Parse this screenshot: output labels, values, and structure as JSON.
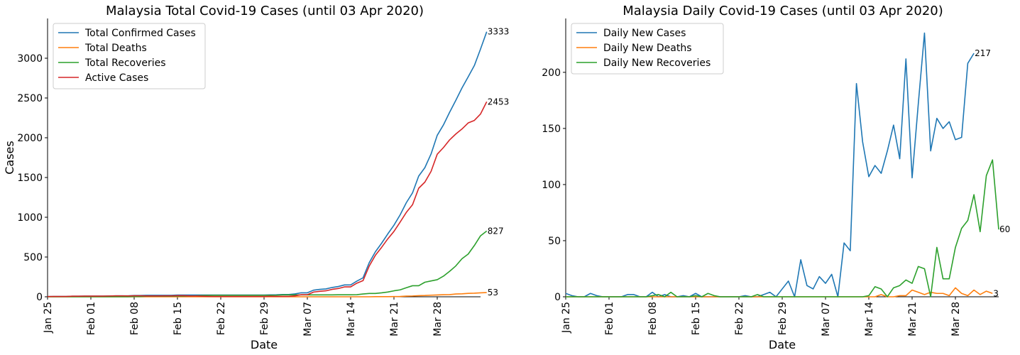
{
  "chart_data": [
    {
      "type": "line",
      "title": "Malaysia Total Covid-19 Cases (until 03 Apr 2020)",
      "xlabel": "Date",
      "ylabel": "Cases",
      "x_start": "2020-01-25",
      "x_ticks": [
        "Jan 25",
        "Feb 01",
        "Feb 08",
        "Feb 15",
        "Feb 22",
        "Feb 29",
        "Mar 07",
        "Mar 14",
        "Mar 21",
        "Mar 28"
      ],
      "y_ticks": [
        "0",
        "500",
        "1000",
        "1500",
        "2000",
        "2500",
        "3000"
      ],
      "ylim": [
        0,
        3500
      ],
      "legend": "top-left",
      "series": [
        {
          "name": "Total Confirmed Cases",
          "color": "#1f77b4",
          "end_label": "3333",
          "values": [
            3,
            4,
            4,
            4,
            7,
            7,
            8,
            8,
            8,
            8,
            10,
            12,
            12,
            12,
            16,
            16,
            18,
            18,
            18,
            19,
            19,
            22,
            22,
            22,
            22,
            22,
            22,
            22,
            22,
            22,
            22,
            22,
            22,
            22,
            22,
            22,
            24,
            25,
            29,
            29,
            36,
            50,
            50,
            83,
            93,
            99,
            117,
            129,
            149,
            149,
            197,
            238,
            428,
            566,
            673,
            790,
            900,
            1030,
            1183,
            1306,
            1518,
            1624,
            1796,
            2031,
            2161,
            2320,
            2470,
            2626,
            2766,
            2908,
            3116,
            3333
          ]
        },
        {
          "name": "Total Deaths",
          "color": "#ff7f0e",
          "end_label": "53",
          "values": [
            0,
            0,
            0,
            0,
            0,
            0,
            0,
            0,
            0,
            0,
            0,
            0,
            0,
            0,
            0,
            0,
            0,
            0,
            0,
            0,
            0,
            0,
            0,
            0,
            0,
            0,
            0,
            0,
            0,
            0,
            0,
            0,
            0,
            0,
            0,
            0,
            0,
            0,
            0,
            0,
            0,
            0,
            0,
            0,
            0,
            0,
            0,
            0,
            0,
            0,
            0,
            0,
            0,
            2,
            2,
            2,
            3,
            4,
            8,
            10,
            14,
            16,
            20,
            23,
            26,
            27,
            35,
            37,
            43,
            45,
            50,
            53
          ]
        },
        {
          "name": "Total Recoveries",
          "color": "#2ca02c",
          "end_label": "827",
          "values": [
            0,
            0,
            0,
            0,
            0,
            0,
            0,
            0,
            0,
            0,
            0,
            0,
            0,
            1,
            3,
            3,
            7,
            7,
            7,
            7,
            7,
            8,
            8,
            11,
            12,
            15,
            17,
            18,
            18,
            18,
            18,
            18,
            18,
            18,
            18,
            18,
            18,
            20,
            24,
            24,
            24,
            24,
            24,
            24,
            24,
            24,
            24,
            25,
            25,
            25,
            26,
            35,
            42,
            42,
            50,
            60,
            75,
            87,
            114,
            139,
            139,
            183,
            199,
            215,
            259,
            320,
            388,
            479,
            537,
            645,
            767,
            827
          ]
        },
        {
          "name": "Active Cases",
          "color": "#d62728",
          "end_label": "2453",
          "values": [
            3,
            4,
            4,
            4,
            7,
            7,
            8,
            8,
            8,
            8,
            10,
            12,
            12,
            11,
            13,
            13,
            11,
            11,
            11,
            12,
            12,
            14,
            14,
            11,
            10,
            7,
            5,
            4,
            4,
            4,
            4,
            4,
            4,
            4,
            4,
            4,
            6,
            5,
            5,
            5,
            12,
            26,
            26,
            59,
            69,
            75,
            93,
            104,
            124,
            124,
            171,
            203,
            386,
            522,
            621,
            728,
            822,
            939,
            1061,
            1157,
            1365,
            1442,
            1577,
            1793,
            1876,
            1973,
            2047,
            2110,
            2186,
            2218,
            2299,
            2453
          ]
        }
      ]
    },
    {
      "type": "line",
      "title": "Malaysia Daily Covid-19 Cases (until 03 Apr 2020)",
      "xlabel": "Date",
      "ylabel": "",
      "x_start": "2020-01-25",
      "x_ticks": [
        "Jan 25",
        "Feb 01",
        "Feb 08",
        "Feb 15",
        "Feb 22",
        "Feb 29",
        "Mar 07",
        "Mar 14",
        "Mar 21",
        "Mar 28"
      ],
      "y_ticks": [
        "0",
        "50",
        "100",
        "150",
        "200"
      ],
      "ylim": [
        0,
        248
      ],
      "legend": "top-left",
      "series": [
        {
          "name": "Daily New Cases",
          "color": "#1f77b4",
          "end_label": "217",
          "values": [
            3,
            1,
            0,
            0,
            3,
            1,
            0,
            0,
            0,
            0,
            2,
            2,
            0,
            0,
            4,
            0,
            2,
            0,
            0,
            1,
            0,
            3,
            0,
            0,
            0,
            0,
            0,
            0,
            0,
            1,
            0,
            0,
            2,
            4,
            0,
            7,
            14,
            0,
            33,
            10,
            7,
            18,
            12,
            20,
            0,
            48,
            41,
            190,
            138,
            107,
            117,
            110,
            130,
            153,
            123,
            212,
            106,
            172,
            235,
            130,
            159,
            150,
            156,
            140,
            142,
            208,
            217
          ]
        },
        {
          "name": "Daily New Deaths",
          "color": "#ff7f0e",
          "end_label": "3",
          "values": [
            0,
            0,
            0,
            0,
            0,
            0,
            0,
            0,
            0,
            0,
            0,
            0,
            0,
            0,
            0,
            0,
            0,
            0,
            0,
            0,
            0,
            0,
            0,
            0,
            0,
            0,
            0,
            0,
            0,
            0,
            0,
            0,
            0,
            0,
            0,
            0,
            0,
            0,
            0,
            0,
            0,
            0,
            0,
            0,
            0,
            0,
            0,
            0,
            0,
            0,
            0,
            2,
            0,
            0,
            1,
            1,
            6,
            4,
            2,
            4,
            3,
            3,
            1,
            8,
            3,
            1,
            6,
            2,
            5,
            3
          ]
        },
        {
          "name": "Daily New Recoveries",
          "color": "#2ca02c",
          "end_label": "60",
          "values": [
            0,
            0,
            0,
            0,
            0,
            0,
            0,
            0,
            0,
            0,
            0,
            0,
            0,
            0,
            1,
            2,
            0,
            4,
            0,
            0,
            0,
            1,
            0,
            3,
            1,
            0,
            0,
            0,
            0,
            0,
            0,
            2,
            0,
            0,
            0,
            0,
            0,
            0,
            0,
            0,
            0,
            0,
            0,
            0,
            0,
            0,
            0,
            0,
            0,
            1,
            9,
            7,
            0,
            8,
            10,
            15,
            12,
            27,
            25,
            0,
            44,
            16,
            16,
            44,
            61,
            68,
            91,
            58,
            108,
            122,
            60
          ]
        }
      ]
    }
  ]
}
